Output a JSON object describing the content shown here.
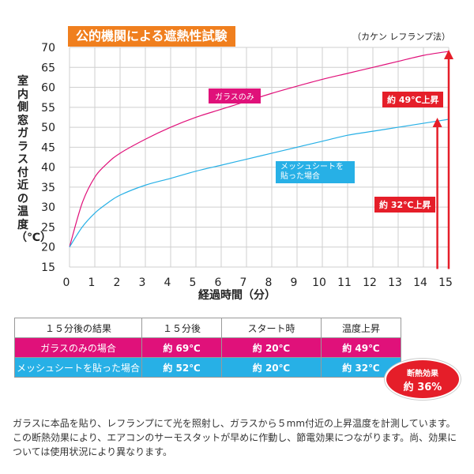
{
  "chart_data": {
    "type": "line",
    "title": "公的機関による遮熱性試験",
    "method_note": "（カケン レフランプ法）",
    "xlabel": "経過時間（分）",
    "ylabel": "室内側窓ガラス付近の温度（℃）",
    "xlim": [
      0,
      15
    ],
    "ylim": [
      15,
      70
    ],
    "x_ticks": [
      "0",
      "1",
      "2",
      "3",
      "4",
      "5",
      "6",
      "7",
      "8",
      "9",
      "10",
      "11",
      "12",
      "13",
      "14",
      "15"
    ],
    "y_ticks": [
      "15",
      "20",
      "25",
      "30",
      "35",
      "40",
      "45",
      "50",
      "55",
      "60",
      "65",
      "70"
    ],
    "grid": true,
    "series": [
      {
        "name": "ガラスのみ",
        "color": "#e0117a",
        "x": [
          0,
          0.5,
          1,
          1.5,
          2,
          3,
          4,
          5,
          6,
          7,
          8,
          9,
          10,
          11,
          12,
          13,
          14,
          15
        ],
        "y": [
          20,
          31,
          37.5,
          41,
          43.5,
          47,
          50,
          52.5,
          54.5,
          56.5,
          58.5,
          60.3,
          62,
          63.5,
          65,
          66.5,
          68,
          69
        ]
      },
      {
        "name": "メッシュシートを貼った場合",
        "color": "#27b0e6",
        "x": [
          0,
          0.5,
          1,
          1.5,
          2,
          3,
          4,
          5,
          6,
          7,
          8,
          9,
          10,
          11,
          12,
          13,
          14,
          15
        ],
        "y": [
          20,
          25,
          28.5,
          31,
          33,
          35.5,
          37.2,
          39,
          40.5,
          42,
          43.5,
          45,
          46.5,
          48,
          49,
          50,
          51,
          52
        ]
      }
    ],
    "annotations": {
      "pink_label": "ガラスのみ",
      "blue_label": "メッシュシートを貼った場合",
      "rise_glass": "約 49℃上昇",
      "rise_mesh": "約 32℃上昇"
    }
  },
  "table": {
    "headers": [
      "１５分後の結果",
      "１５分後",
      "スタート時",
      "温度上昇"
    ],
    "rows": [
      {
        "label": "ガラスのみの場合",
        "after": "約 69℃",
        "start": "約 20℃",
        "rise": "約 49℃"
      },
      {
        "label": "メッシュシートを貼った場合",
        "after": "約 52℃",
        "start": "約 20℃",
        "rise": "約 32℃"
      }
    ]
  },
  "badge": {
    "line1": "断熱効果",
    "line2": "約 36%"
  },
  "note": "ガラスに本品を貼り、レフランプにて光を照射し、ガラスから５mm付近の上昇温度を計測しています。この断熱効果により、エアコンのサーモスタットが早めに作動し、節電効果につながります。尚、効果については使用状況により異なります。"
}
